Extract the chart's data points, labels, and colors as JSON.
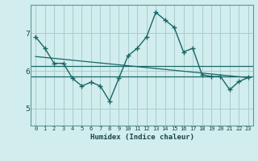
{
  "title": "",
  "xlabel": "Humidex (Indice chaleur)",
  "background_color": "#d1eded",
  "grid_color": "#a8cccc",
  "line_color": "#1a6666",
  "x_ticks": [
    0,
    1,
    2,
    3,
    4,
    5,
    6,
    7,
    8,
    9,
    10,
    11,
    12,
    13,
    14,
    15,
    16,
    17,
    18,
    19,
    20,
    21,
    22,
    23
  ],
  "y_ticks": [
    5,
    6,
    7
  ],
  "ylim": [
    4.55,
    7.75
  ],
  "xlim": [
    -0.5,
    23.5
  ],
  "main_data": [
    6.9,
    6.6,
    6.2,
    6.2,
    5.8,
    5.6,
    5.7,
    5.6,
    5.2,
    5.8,
    6.4,
    6.6,
    6.9,
    7.55,
    7.35,
    7.15,
    6.5,
    6.6,
    5.9,
    5.85,
    5.85,
    5.5,
    5.72,
    5.82
  ],
  "line1_data_y": 6.13,
  "line2_data_y": 5.86,
  "trend_start_y": 6.38,
  "trend_end_y": 5.82
}
